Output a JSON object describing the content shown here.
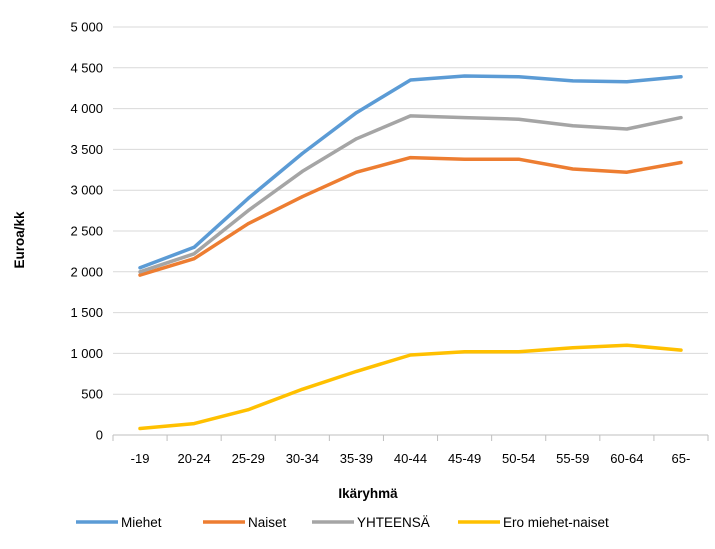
{
  "chart_data": {
    "type": "line",
    "title": "",
    "xlabel": "Ikäryhmä",
    "ylabel": "Euroa/kk",
    "ylim": [
      0,
      5000
    ],
    "yticks": [
      0,
      500,
      1000,
      1500,
      2000,
      2500,
      3000,
      3500,
      4000,
      4500,
      5000
    ],
    "ytick_labels": [
      "0",
      "500",
      "1 000",
      "1 500",
      "2 000",
      "2 500",
      "3 000",
      "3 500",
      "4 000",
      "4 500",
      "5 000"
    ],
    "grid": "horizontal",
    "legend_position": "bottom",
    "categories": [
      "-19",
      "20-24",
      "25-29",
      "30-34",
      "35-39",
      "40-44",
      "45-49",
      "50-54",
      "55-59",
      "60-64",
      "65-"
    ],
    "series": [
      {
        "name": "Miehet",
        "color": "#5b9bd5",
        "values": [
          2050,
          2300,
          2900,
          3450,
          3950,
          4350,
          4400,
          4390,
          4340,
          4330,
          4390
        ]
      },
      {
        "name": "Naiset",
        "color": "#ed7d31",
        "values": [
          1960,
          2160,
          2590,
          2920,
          3220,
          3400,
          3380,
          3380,
          3260,
          3220,
          3340
        ]
      },
      {
        "name": "YHTEENSÄ",
        "color": "#a5a5a5",
        "values": [
          2000,
          2220,
          2750,
          3230,
          3630,
          3910,
          3890,
          3870,
          3790,
          3750,
          3890
        ]
      },
      {
        "name": "Ero miehet-naiset",
        "color": "#ffc000",
        "values": [
          80,
          140,
          310,
          560,
          780,
          980,
          1020,
          1020,
          1070,
          1100,
          1040
        ]
      }
    ]
  }
}
